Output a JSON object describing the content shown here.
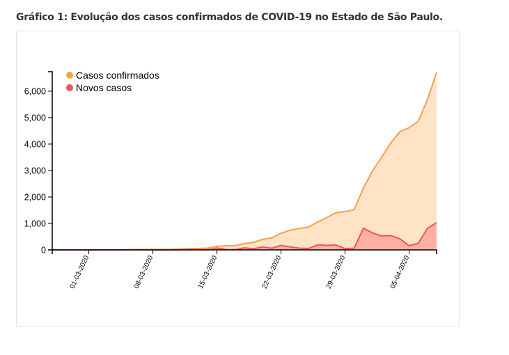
{
  "title": "Gráfico 1: Evolução dos casos confirmados de COVID-19 no Estado de São Paulo.",
  "chart_data": {
    "type": "area",
    "title": "Gráfico 1: Evolução dos casos confirmados de COVID-19 no Estado de São Paulo.",
    "xlabel": "",
    "ylabel": "",
    "x_start": "26-02-2020",
    "x_end": "08-04-2020",
    "x_tick_labels": [
      "01-03-2020",
      "08-03-2020",
      "15-03-2020",
      "22-03-2020",
      "29-03-2020",
      "05-04-2020"
    ],
    "y_ticks": [
      0,
      1000,
      2000,
      3000,
      4000,
      5000,
      6000
    ],
    "y_tick_labels": [
      "0",
      "1,000",
      "2,000",
      "3,000",
      "4,000",
      "5,000",
      "6,000"
    ],
    "ylim": [
      0,
      6735
    ],
    "grid": false,
    "legend_position": "top-left",
    "series": [
      {
        "name": "Casos confirmados",
        "color": "#f6a04d",
        "fill": "#ffe3c6",
        "values": [
          1,
          1,
          1,
          2,
          2,
          2,
          2,
          3,
          6,
          10,
          13,
          16,
          16,
          19,
          30,
          42,
          56,
          65,
          136,
          152,
          164,
          240,
          286,
          396,
          459,
          631,
          745,
          810,
          862,
          1052,
          1223,
          1406,
          1451,
          1517,
          2339,
          2981,
          3506,
          4048,
          4466,
          4620,
          4866,
          5682,
          6708
        ]
      },
      {
        "name": "Novos casos",
        "color": "#f05558",
        "fill": "#ffb0a4",
        "values": [
          1,
          0,
          0,
          1,
          0,
          0,
          0,
          1,
          3,
          4,
          3,
          3,
          0,
          3,
          11,
          12,
          14,
          9,
          71,
          16,
          12,
          76,
          46,
          110,
          63,
          172,
          114,
          65,
          52,
          190,
          171,
          183,
          45,
          66,
          822,
          642,
          525,
          542,
          418,
          154,
          246,
          816,
          1026
        ]
      }
    ]
  }
}
